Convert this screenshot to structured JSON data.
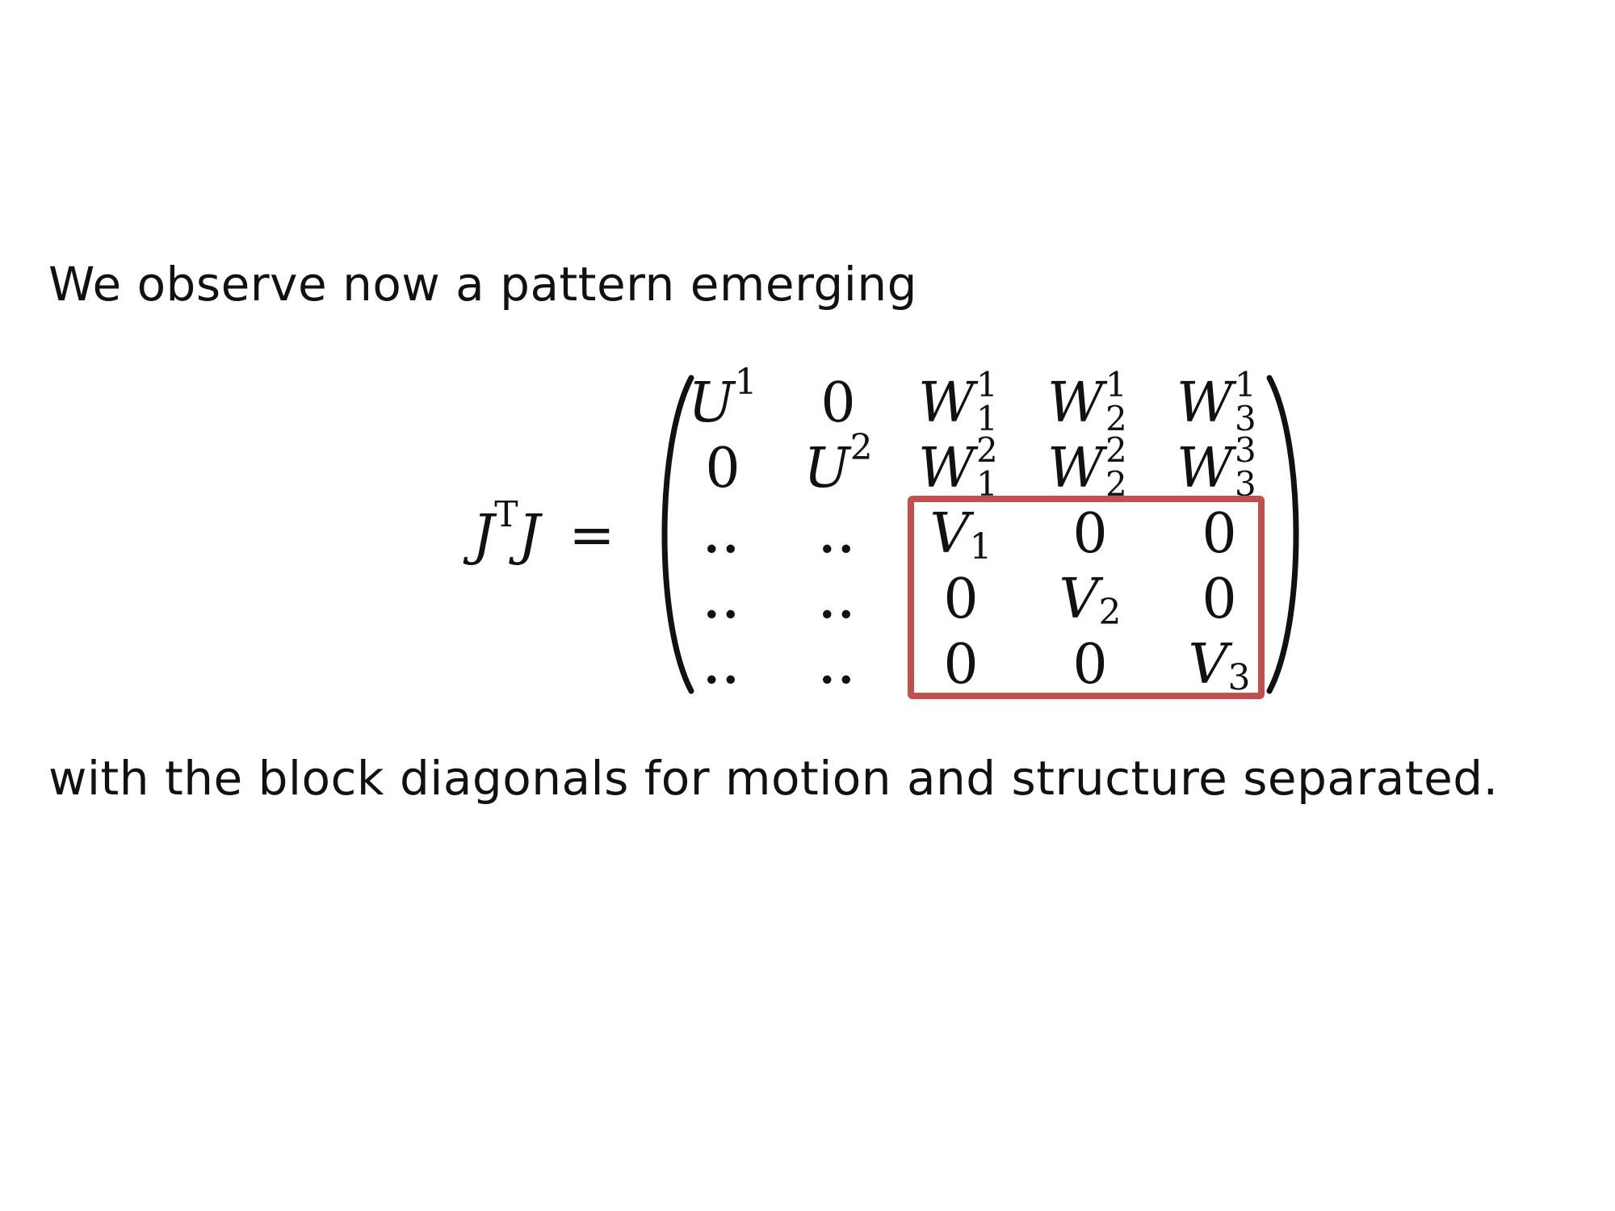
{
  "text": {
    "intro": "We observe now a pattern emerging",
    "outro": "with the block diagonals for motion and structure separated."
  },
  "equation": {
    "lhs": {
      "base": "J",
      "sup": "T",
      "base2": "J",
      "equals": "="
    },
    "rows": [
      [
        {
          "base": "U",
          "sup": "1"
        },
        {
          "base": "0"
        },
        {
          "base": "W",
          "sup": "1",
          "sub": "1"
        },
        {
          "base": "W",
          "sup": "1",
          "sub": "2"
        },
        {
          "base": "W",
          "sup": "1",
          "sub": "3"
        }
      ],
      [
        {
          "base": "0"
        },
        {
          "base": "U",
          "sup": "2"
        },
        {
          "base": "W",
          "sup": "2",
          "sub": "1"
        },
        {
          "base": "W",
          "sup": "2",
          "sub": "2"
        },
        {
          "base": "W",
          "sup": "3",
          "sub": "3"
        }
      ],
      [
        {
          "base": ".."
        },
        {
          "base": ".."
        },
        {
          "base": "V",
          "sub": "1"
        },
        {
          "base": "0"
        },
        {
          "base": "0"
        }
      ],
      [
        {
          "base": ".."
        },
        {
          "base": ".."
        },
        {
          "base": "0"
        },
        {
          "base": "V",
          "sub": "2"
        },
        {
          "base": "0"
        }
      ],
      [
        {
          "base": ".."
        },
        {
          "base": ".."
        },
        {
          "base": "0"
        },
        {
          "base": "0"
        },
        {
          "base": "V",
          "sub": "3"
        }
      ]
    ],
    "highlight_color": "#c0504d"
  }
}
